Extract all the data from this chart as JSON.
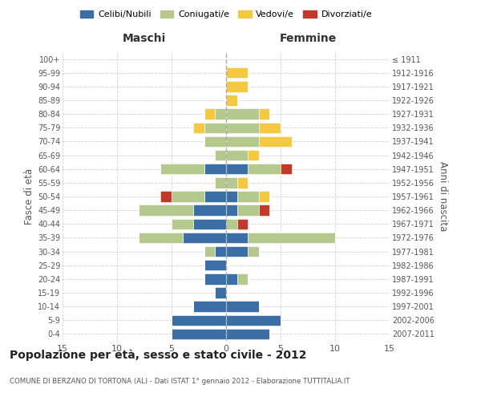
{
  "age_groups": [
    "0-4",
    "5-9",
    "10-14",
    "15-19",
    "20-24",
    "25-29",
    "30-34",
    "35-39",
    "40-44",
    "45-49",
    "50-54",
    "55-59",
    "60-64",
    "65-69",
    "70-74",
    "75-79",
    "80-84",
    "85-89",
    "90-94",
    "95-99",
    "100+"
  ],
  "birth_years": [
    "2007-2011",
    "2002-2006",
    "1997-2001",
    "1992-1996",
    "1987-1991",
    "1982-1986",
    "1977-1981",
    "1972-1976",
    "1967-1971",
    "1962-1966",
    "1957-1961",
    "1952-1956",
    "1947-1951",
    "1942-1946",
    "1937-1941",
    "1932-1936",
    "1927-1931",
    "1922-1926",
    "1917-1921",
    "1912-1916",
    "≤ 1911"
  ],
  "colors": {
    "celibi": "#3B6EA5",
    "coniugati": "#B5C98E",
    "vedovi": "#F5C842",
    "divorziati": "#C0392B"
  },
  "males": {
    "celibi": [
      5,
      5,
      3,
      1,
      2,
      2,
      1,
      4,
      3,
      3,
      2,
      0,
      2,
      0,
      0,
      0,
      0,
      0,
      0,
      0,
      0
    ],
    "coniugati": [
      0,
      0,
      0,
      0,
      0,
      0,
      1,
      4,
      2,
      5,
      3,
      1,
      4,
      1,
      2,
      2,
      1,
      0,
      0,
      0,
      0
    ],
    "vedovi": [
      0,
      0,
      0,
      0,
      0,
      0,
      0,
      0,
      0,
      0,
      0,
      0,
      0,
      0,
      0,
      1,
      1,
      0,
      0,
      0,
      0
    ],
    "divorziati": [
      0,
      0,
      0,
      0,
      0,
      0,
      0,
      0,
      0,
      0,
      1,
      0,
      0,
      0,
      0,
      0,
      0,
      0,
      0,
      0,
      0
    ]
  },
  "females": {
    "celibi": [
      4,
      5,
      3,
      0,
      1,
      0,
      2,
      2,
      0,
      1,
      1,
      0,
      2,
      0,
      0,
      0,
      0,
      0,
      0,
      0,
      0
    ],
    "coniugati": [
      0,
      0,
      0,
      0,
      1,
      0,
      1,
      8,
      1,
      2,
      2,
      1,
      3,
      2,
      3,
      3,
      3,
      0,
      0,
      0,
      0
    ],
    "vedovi": [
      0,
      0,
      0,
      0,
      0,
      0,
      0,
      0,
      0,
      0,
      1,
      1,
      0,
      1,
      3,
      2,
      1,
      1,
      2,
      2,
      0
    ],
    "divorziati": [
      0,
      0,
      0,
      0,
      0,
      0,
      0,
      0,
      1,
      1,
      0,
      0,
      1,
      0,
      0,
      0,
      0,
      0,
      0,
      0,
      0
    ]
  },
  "xlim": 15,
  "title": "Popolazione per età, sesso e stato civile - 2012",
  "subtitle": "COMUNE DI BERZANO DI TORTONA (AL) - Dati ISTAT 1° gennaio 2012 - Elaborazione TUTTITALIA.IT",
  "ylabel_left": "Fasce di età",
  "ylabel_right": "Anni di nascita",
  "xlabel_males": "Maschi",
  "xlabel_females": "Femmine",
  "legend_labels": [
    "Celibi/Nubili",
    "Coniugati/e",
    "Vedovi/e",
    "Divorziati/e"
  ],
  "background": "#FFFFFF",
  "grid_color": "#CCCCCC"
}
